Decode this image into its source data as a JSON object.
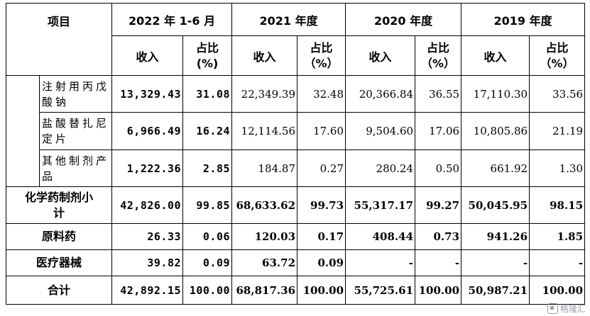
{
  "header": {
    "item": "项目",
    "periods": [
      "2022 年 1-6 月",
      "2021 年度",
      "2020 年度",
      "2019 年度"
    ],
    "revenue": "收入",
    "ratio_bold": "占比\n(%)",
    "ratio": "占比\n（%）"
  },
  "rows": [
    {
      "label": "注射用丙戊酸钠",
      "cells": [
        "13,329.43",
        "31.08",
        "22,349.39",
        "32.48",
        "20,366.84",
        "36.55",
        "17,110.30",
        "33.56"
      ]
    },
    {
      "label": "盐酸替扎尼定片",
      "cells": [
        "6,966.49",
        "16.24",
        "12,114.56",
        "17.60",
        "9,504.60",
        "17.06",
        "10,805.86",
        "21.19"
      ]
    },
    {
      "label": "其他制剂产品",
      "cells": [
        "1,222.36",
        "2.85",
        "184.87",
        "0.27",
        "280.24",
        "0.50",
        "661.92",
        "1.30"
      ]
    },
    {
      "label": "化学药制剂小计",
      "cells": [
        "42,826.00",
        "99.85",
        "68,633.62",
        "99.73",
        "55,317.17",
        "99.27",
        "50,045.95",
        "98.15"
      ]
    },
    {
      "label": "原料药",
      "cells": [
        "26.33",
        "0.06",
        "120.03",
        "0.17",
        "408.44",
        "0.73",
        "941.26",
        "1.85"
      ]
    },
    {
      "label": "医疗器械",
      "cells": [
        "39.82",
        "0.09",
        "63.72",
        "0.09",
        "-",
        "-",
        "-",
        "-"
      ]
    },
    {
      "label": "合计",
      "cells": [
        "42,892.15",
        "100.00",
        "68,817.36",
        "100.00",
        "55,725.61",
        "100.00",
        "50,987.21",
        "100.00"
      ]
    }
  ],
  "watermark": {
    "text": "格隆汇",
    "icon": "gelonghui-logo-icon"
  }
}
